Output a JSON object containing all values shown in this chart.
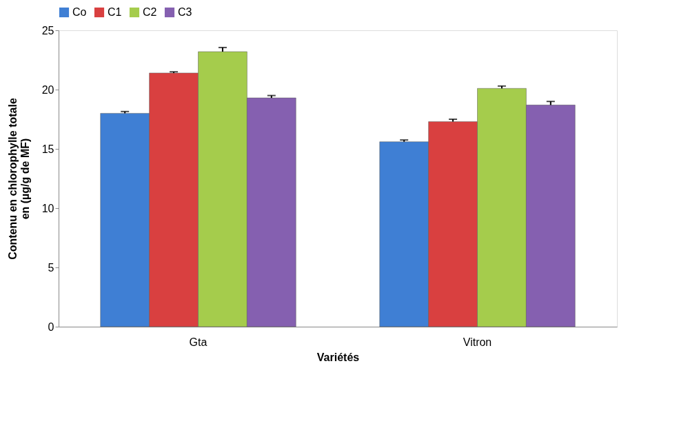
{
  "chart_data": {
    "type": "bar",
    "xlabel": "Variétés",
    "ylabel": "Contenu en chlorophylle totale\nen (µg/g de MF)",
    "categories": [
      "Gta",
      "Vitron"
    ],
    "series": [
      {
        "name": "Co",
        "color": "#3f7fd4",
        "values": [
          18.0,
          15.6
        ],
        "errors": [
          0.15,
          0.15
        ]
      },
      {
        "name": "C1",
        "color": "#d94040",
        "values": [
          21.4,
          17.3
        ],
        "errors": [
          0.1,
          0.2
        ]
      },
      {
        "name": "C2",
        "color": "#a5cc4c",
        "values": [
          23.2,
          20.1
        ],
        "errors": [
          0.35,
          0.2
        ]
      },
      {
        "name": "C3",
        "color": "#8560b0",
        "values": [
          19.3,
          18.7
        ],
        "errors": [
          0.2,
          0.3
        ]
      }
    ],
    "ylim": [
      0,
      25
    ],
    "yticks": [
      0,
      5,
      10,
      15,
      20,
      25
    ],
    "grid": false,
    "legend": "top"
  }
}
